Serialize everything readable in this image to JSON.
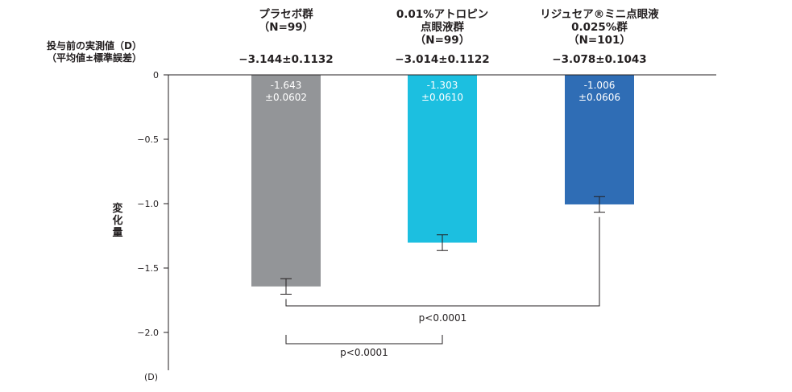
{
  "chart_data": {
    "type": "bar",
    "categories": [
      "プラセボ群\n（N=99）",
      "0.01%アトロピン\n点眼液群\n（N=99）",
      "リジュセア®ミニ点眼液\n0.025%群\n（N=101）"
    ],
    "baselines": [
      "−3.144±0.1132",
      "−3.014±0.1122",
      "−3.078±0.1043"
    ],
    "baseline_label": "投与前の実測値（D）\n（平均値±標準誤差）",
    "values": [
      -1.643,
      -1.303,
      -1.006
    ],
    "errors": [
      0.0602,
      0.061,
      0.0606
    ],
    "value_labels": [
      "-1.643\n±0.0602",
      "-1.303\n±0.0610",
      "-1.006\n±0.0606"
    ],
    "colors": [
      "#939598",
      "#1cbfe0",
      "#2f6db5"
    ],
    "ylabel": "変化量",
    "unit": "(D)",
    "ylim": [
      -2.3,
      0
    ],
    "yticks": [
      0,
      -0.5,
      -1.0,
      -1.5,
      -2.0
    ],
    "ytick_labels": [
      "0",
      "−0.5",
      "−1.0",
      "−1.5",
      "−2.0"
    ],
    "comparisons": [
      {
        "from": 0,
        "to": 2,
        "label": "p<0.0001"
      },
      {
        "from": 0,
        "to": 1,
        "label": "p<0.0001"
      }
    ]
  }
}
